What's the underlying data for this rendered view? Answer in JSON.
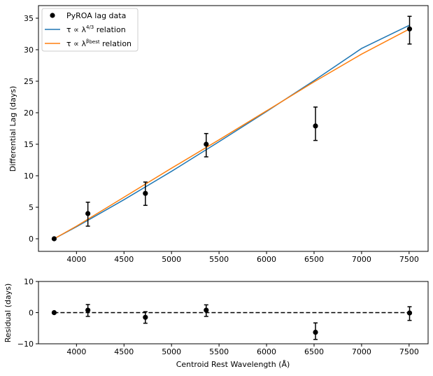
{
  "chart_data": [
    {
      "type": "scatter",
      "ylabel": "Differential Lag (days)",
      "xlim": [
        3600,
        7700
      ],
      "ylim": [
        -2,
        37
      ],
      "xticks": [
        4000,
        4500,
        5000,
        5500,
        6000,
        6500,
        7000,
        7500
      ],
      "yticks": [
        0,
        5,
        10,
        15,
        20,
        25,
        30,
        35
      ],
      "legend": {
        "position": "top-left",
        "entries": [
          {
            "label": "PyROA lag data",
            "kind": "marker",
            "color": "#000000"
          },
          {
            "label_prefix": "τ ∝ λ",
            "exponent": "4/3",
            "label_suffix": " relation",
            "kind": "line",
            "color": "#1f77b4"
          },
          {
            "label_prefix": "τ ∝ λ",
            "exponent": "β_best",
            "label_suffix": " relation",
            "kind": "line",
            "color": "#ff7f0e"
          }
        ]
      },
      "series": [
        {
          "name": "PyROA lag data",
          "style": "errorbar",
          "color": "#000000",
          "x": [
            3765,
            4120,
            4725,
            5365,
            6515,
            7505
          ],
          "y": [
            0.0,
            4.0,
            7.2,
            15.0,
            17.9,
            33.3
          ],
          "yerr_low": [
            0.0,
            2.0,
            1.9,
            2.0,
            2.3,
            2.4
          ],
          "yerr_high": [
            0.0,
            1.8,
            1.8,
            1.7,
            3.0,
            2.0
          ]
        },
        {
          "name": "τ ∝ λ^(4/3) relation",
          "style": "line",
          "color": "#1f77b4",
          "x": [
            3765,
            4000,
            4500,
            5000,
            5500,
            6000,
            6500,
            7000,
            7505
          ],
          "y": [
            0.0,
            1.9,
            6.2,
            10.7,
            15.4,
            20.2,
            25.1,
            30.2,
            33.9
          ]
        },
        {
          "name": "τ ∝ λ^β_best relation",
          "style": "line",
          "color": "#ff7f0e",
          "x": [
            3765,
            4000,
            4500,
            5000,
            5500,
            6000,
            6500,
            7000,
            7505
          ],
          "y": [
            0.0,
            2.0,
            6.6,
            11.2,
            15.7,
            20.3,
            24.9,
            29.3,
            33.3
          ]
        }
      ]
    },
    {
      "type": "scatter",
      "xlabel": "Centroid Rest Wavelength (Å)",
      "ylabel": "Residual (days)",
      "xlim": [
        3600,
        7700
      ],
      "ylim": [
        -10,
        10
      ],
      "xticks": [
        4000,
        4500,
        5000,
        5500,
        6000,
        6500,
        7000,
        7500
      ],
      "yticks": [
        -10,
        0,
        10
      ],
      "reference_line": {
        "y": 0,
        "style": "dashed",
        "color": "#000000"
      },
      "series": [
        {
          "name": "Residual",
          "style": "errorbar",
          "color": "#000000",
          "x": [
            3765,
            4120,
            4725,
            5365,
            6515,
            7505
          ],
          "y": [
            0.0,
            0.8,
            -1.5,
            0.8,
            -6.3,
            -0.1
          ],
          "yerr_low": [
            0.0,
            2.0,
            1.9,
            2.0,
            2.3,
            2.4
          ],
          "yerr_high": [
            0.0,
            1.8,
            1.8,
            1.7,
            3.0,
            2.0
          ]
        }
      ]
    }
  ]
}
